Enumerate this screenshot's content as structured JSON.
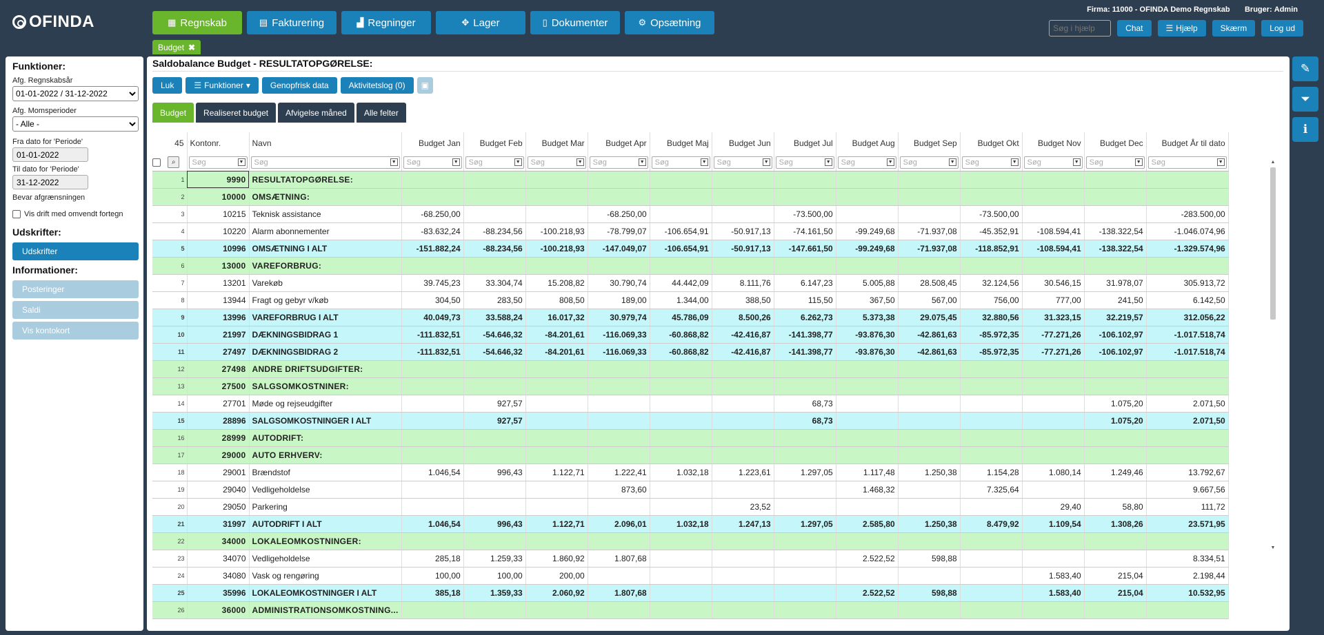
{
  "app": {
    "logo": "OFINDA"
  },
  "nav": [
    {
      "label": "Regnskab",
      "icon": "calendar-icon",
      "active": true
    },
    {
      "label": "Fakturering",
      "icon": "clipboard-icon",
      "active": false
    },
    {
      "label": "Regninger",
      "icon": "bar-chart-icon",
      "active": false
    },
    {
      "label": "Lager",
      "icon": "cubes-icon",
      "active": false
    },
    {
      "label": "Dokumenter",
      "icon": "document-icon",
      "active": false
    },
    {
      "label": "Opsætning",
      "icon": "gear-icon",
      "active": false
    }
  ],
  "header": {
    "firma_label": "Firma:",
    "firma_value": "11000 - OFINDA Demo Regnskab",
    "bruger_label": "Bruger:",
    "bruger_value": "Admin",
    "search_placeholder": "Søg i hjælp",
    "buttons": {
      "chat": "Chat",
      "help": "Hjælp",
      "screen": "Skærm",
      "logout": "Log ud"
    }
  },
  "open_tab": {
    "label": "Budget",
    "close": "✖"
  },
  "sidebar": {
    "functions_title": "Funktioner:",
    "regnskabsaar_label": "Afg. Regnskabsår",
    "regnskabsaar_value": "01-01-2022 / 31-12-2022",
    "momsperioder_label": "Afg. Momsperioder",
    "momsperioder_value": "- Alle -",
    "fra_label": "Fra dato for 'Periode'",
    "fra_value": "01-01-2022",
    "til_label": "Til dato for 'Periode'",
    "til_value": "31-12-2022",
    "bevar_label": "Bevar afgrænsningen",
    "omvendt_label": "Vis drift med omvendt fortegn",
    "udskrifter_title": "Udskrifter:",
    "udskrifter_button": "Udskrifter",
    "info_title": "Informationer:",
    "info_buttons": [
      "Posteringer",
      "Saldi",
      "Vis kontokort"
    ]
  },
  "page": {
    "title": "Saldobalance Budget - RESULTATOPGØRELSE:"
  },
  "actions": {
    "close": "Luk",
    "functions": "Funktioner",
    "refresh": "Genopfrisk data",
    "activity": "Aktivitetslog (0)"
  },
  "view_tabs": [
    {
      "label": "Budget",
      "active": true
    },
    {
      "label": "Realiseret budget",
      "active": false
    },
    {
      "label": "Afvigelse måned",
      "active": false
    },
    {
      "label": "Alle felter",
      "active": false
    }
  ],
  "grid": {
    "row_count": "45",
    "filter_placeholder": "Søg",
    "columns": [
      "Kontonr.",
      "Navn",
      "Budget Jan",
      "Budget Feb",
      "Budget Mar",
      "Budget Apr",
      "Budget Maj",
      "Budget Jun",
      "Budget Jul",
      "Budget Aug",
      "Budget Sep",
      "Budget Okt",
      "Budget Nov",
      "Budget Dec",
      "Budget År til dato"
    ],
    "rows": [
      {
        "n": "1",
        "t": "g",
        "kontonr": "9990",
        "navn": "RESULTATOPGØRELSE:",
        "v": [
          "",
          "",
          "",
          "",
          "",
          "",
          "",
          "",
          "",
          "",
          "",
          "",
          ""
        ]
      },
      {
        "n": "2",
        "t": "g",
        "kontonr": "10000",
        "navn": "OMSÆTNING:",
        "v": [
          "",
          "",
          "",
          "",
          "",
          "",
          "",
          "",
          "",
          "",
          "",
          "",
          ""
        ]
      },
      {
        "n": "3",
        "t": "w",
        "kontonr": "10215",
        "navn": "Teknisk assistance",
        "v": [
          "-68.250,00",
          "",
          "",
          "-68.250,00",
          "",
          "",
          "-73.500,00",
          "",
          "",
          "-73.500,00",
          "",
          "",
          "-283.500,00"
        ]
      },
      {
        "n": "4",
        "t": "w",
        "kontonr": "10220",
        "navn": "Alarm abonnementer",
        "v": [
          "-83.632,24",
          "-88.234,56",
          "-100.218,93",
          "-78.799,07",
          "-106.654,91",
          "-50.917,13",
          "-74.161,50",
          "-99.249,68",
          "-71.937,08",
          "-45.352,91",
          "-108.594,41",
          "-138.322,54",
          "-1.046.074,96"
        ]
      },
      {
        "n": "5",
        "t": "c",
        "kontonr": "10996",
        "navn": "OMSÆTNING I ALT",
        "v": [
          "-151.882,24",
          "-88.234,56",
          "-100.218,93",
          "-147.049,07",
          "-106.654,91",
          "-50.917,13",
          "-147.661,50",
          "-99.249,68",
          "-71.937,08",
          "-118.852,91",
          "-108.594,41",
          "-138.322,54",
          "-1.329.574,96"
        ]
      },
      {
        "n": "6",
        "t": "g",
        "kontonr": "13000",
        "navn": "VAREFORBRUG:",
        "v": [
          "",
          "",
          "",
          "",
          "",
          "",
          "",
          "",
          "",
          "",
          "",
          "",
          ""
        ]
      },
      {
        "n": "7",
        "t": "w",
        "kontonr": "13201",
        "navn": "Varekøb",
        "v": [
          "39.745,23",
          "33.304,74",
          "15.208,82",
          "30.790,74",
          "44.442,09",
          "8.111,76",
          "6.147,23",
          "5.005,88",
          "28.508,45",
          "32.124,56",
          "30.546,15",
          "31.978,07",
          "305.913,72"
        ]
      },
      {
        "n": "8",
        "t": "w",
        "kontonr": "13944",
        "navn": "Fragt og gebyr v/køb",
        "v": [
          "304,50",
          "283,50",
          "808,50",
          "189,00",
          "1.344,00",
          "388,50",
          "115,50",
          "367,50",
          "567,00",
          "756,00",
          "777,00",
          "241,50",
          "6.142,50"
        ]
      },
      {
        "n": "9",
        "t": "c",
        "kontonr": "13996",
        "navn": "VAREFORBRUG I ALT",
        "v": [
          "40.049,73",
          "33.588,24",
          "16.017,32",
          "30.979,74",
          "45.786,09",
          "8.500,26",
          "6.262,73",
          "5.373,38",
          "29.075,45",
          "32.880,56",
          "31.323,15",
          "32.219,57",
          "312.056,22"
        ]
      },
      {
        "n": "10",
        "t": "c",
        "kontonr": "21997",
        "navn": "DÆKNINGSBIDRAG 1",
        "v": [
          "-111.832,51",
          "-54.646,32",
          "-84.201,61",
          "-116.069,33",
          "-60.868,82",
          "-42.416,87",
          "-141.398,77",
          "-93.876,30",
          "-42.861,63",
          "-85.972,35",
          "-77.271,26",
          "-106.102,97",
          "-1.017.518,74"
        ]
      },
      {
        "n": "11",
        "t": "c",
        "kontonr": "27497",
        "navn": "DÆKNINGSBIDRAG 2",
        "v": [
          "-111.832,51",
          "-54.646,32",
          "-84.201,61",
          "-116.069,33",
          "-60.868,82",
          "-42.416,87",
          "-141.398,77",
          "-93.876,30",
          "-42.861,63",
          "-85.972,35",
          "-77.271,26",
          "-106.102,97",
          "-1.017.518,74"
        ]
      },
      {
        "n": "12",
        "t": "g",
        "kontonr": "27498",
        "navn": "ANDRE DRIFTSUDGIFTER:",
        "v": [
          "",
          "",
          "",
          "",
          "",
          "",
          "",
          "",
          "",
          "",
          "",
          "",
          ""
        ]
      },
      {
        "n": "13",
        "t": "g",
        "kontonr": "27500",
        "navn": "SALGSOMKOSTNINER:",
        "v": [
          "",
          "",
          "",
          "",
          "",
          "",
          "",
          "",
          "",
          "",
          "",
          "",
          ""
        ]
      },
      {
        "n": "14",
        "t": "w",
        "kontonr": "27701",
        "navn": "Møde og rejseudgifter",
        "v": [
          "",
          "927,57",
          "",
          "",
          "",
          "",
          "68,73",
          "",
          "",
          "",
          "",
          "1.075,20",
          "2.071,50"
        ]
      },
      {
        "n": "15",
        "t": "c",
        "kontonr": "28896",
        "navn": "SALGSOMKOSTNINGER I ALT",
        "v": [
          "",
          "927,57",
          "",
          "",
          "",
          "",
          "68,73",
          "",
          "",
          "",
          "",
          "1.075,20",
          "2.071,50"
        ]
      },
      {
        "n": "16",
        "t": "g",
        "kontonr": "28999",
        "navn": "AUTODRIFT:",
        "v": [
          "",
          "",
          "",
          "",
          "",
          "",
          "",
          "",
          "",
          "",
          "",
          "",
          ""
        ]
      },
      {
        "n": "17",
        "t": "g",
        "kontonr": "29000",
        "navn": "AUTO ERHVERV:",
        "v": [
          "",
          "",
          "",
          "",
          "",
          "",
          "",
          "",
          "",
          "",
          "",
          "",
          ""
        ]
      },
      {
        "n": "18",
        "t": "w",
        "kontonr": "29001",
        "navn": "Brændstof",
        "v": [
          "1.046,54",
          "996,43",
          "1.122,71",
          "1.222,41",
          "1.032,18",
          "1.223,61",
          "1.297,05",
          "1.117,48",
          "1.250,38",
          "1.154,28",
          "1.080,14",
          "1.249,46",
          "13.792,67"
        ]
      },
      {
        "n": "19",
        "t": "w",
        "kontonr": "29040",
        "navn": "Vedligeholdelse",
        "v": [
          "",
          "",
          "",
          "873,60",
          "",
          "",
          "",
          "1.468,32",
          "",
          "7.325,64",
          "",
          "",
          "9.667,56"
        ]
      },
      {
        "n": "20",
        "t": "w",
        "kontonr": "29050",
        "navn": "Parkering",
        "v": [
          "",
          "",
          "",
          "",
          "",
          "23,52",
          "",
          "",
          "",
          "",
          "29,40",
          "58,80",
          "111,72"
        ]
      },
      {
        "n": "21",
        "t": "c",
        "kontonr": "31997",
        "navn": "AUTODRIFT I ALT",
        "v": [
          "1.046,54",
          "996,43",
          "1.122,71",
          "2.096,01",
          "1.032,18",
          "1.247,13",
          "1.297,05",
          "2.585,80",
          "1.250,38",
          "8.479,92",
          "1.109,54",
          "1.308,26",
          "23.571,95"
        ]
      },
      {
        "n": "22",
        "t": "g",
        "kontonr": "34000",
        "navn": "LOKALEOMKOSTNINGER:",
        "v": [
          "",
          "",
          "",
          "",
          "",
          "",
          "",
          "",
          "",
          "",
          "",
          "",
          ""
        ]
      },
      {
        "n": "23",
        "t": "w",
        "kontonr": "34070",
        "navn": "Vedligeholdelse",
        "v": [
          "285,18",
          "1.259,33",
          "1.860,92",
          "1.807,68",
          "",
          "",
          "",
          "2.522,52",
          "598,88",
          "",
          "",
          "",
          "8.334,51"
        ]
      },
      {
        "n": "24",
        "t": "w",
        "kontonr": "34080",
        "navn": "Vask og rengøring",
        "v": [
          "100,00",
          "100,00",
          "200,00",
          "",
          "",
          "",
          "",
          "",
          "",
          "",
          "1.583,40",
          "215,04",
          "2.198,44"
        ]
      },
      {
        "n": "25",
        "t": "c",
        "kontonr": "35996",
        "navn": "LOKALEOMKOSTNINGER I ALT",
        "v": [
          "385,18",
          "1.359,33",
          "2.060,92",
          "1.807,68",
          "",
          "",
          "",
          "2.522,52",
          "598,88",
          "",
          "1.583,40",
          "215,04",
          "10.532,95"
        ]
      },
      {
        "n": "26",
        "t": "g",
        "kontonr": "36000",
        "navn": "ADMINISTRATIONSOMKOSTNING...",
        "v": [
          "",
          "",
          "",
          "",
          "",
          "",
          "",
          "",
          "",
          "",
          "",
          "",
          ""
        ]
      }
    ]
  }
}
